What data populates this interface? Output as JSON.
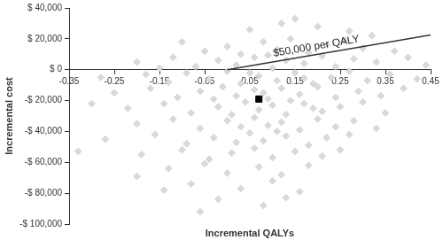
{
  "chart_data": {
    "type": "scatter",
    "x_label": "Incremental QALYs",
    "y_label": "Incremental cost",
    "grid": false,
    "xlim": [
      -0.35,
      0.45
    ],
    "xticks": [
      -0.35,
      -0.25,
      -0.15,
      -0.05,
      0.05,
      0.15,
      0.25,
      0.35,
      0.45
    ],
    "ylim": [
      -100000,
      40000
    ],
    "yticks": [
      {
        "value": 40000,
        "label": "$ 40,000"
      },
      {
        "value": 20000,
        "label": "$ 20,000"
      },
      {
        "value": 0,
        "label": "$ 0"
      },
      {
        "value": -20000,
        "label": "-$ 20,000"
      },
      {
        "value": -40000,
        "label": "-$ 40,000"
      },
      {
        "value": -60000,
        "label": "-$ 60,000"
      },
      {
        "value": -80000,
        "label": "-$ 80,000"
      },
      {
        "value": -100000,
        "label": "-$ 100,000"
      }
    ],
    "series": [
      {
        "color": "#d9d9d9",
        "marker": "diamond",
        "x": [
          0.12,
          0.2,
          0.05,
          0.27,
          0.15,
          0.32,
          -0.05,
          0.0,
          0.08,
          0.14,
          0.22,
          0.3,
          0.37,
          -0.1,
          0.18,
          0.26,
          0.03,
          0.11,
          -0.2,
          -0.12,
          -0.07,
          -0.02,
          0.02,
          0.06,
          0.1,
          0.13,
          0.17,
          0.21,
          0.24,
          0.28,
          0.33,
          0.4,
          0.44,
          0.09,
          -0.15,
          -0.28,
          -0.18,
          -0.13,
          -0.09,
          -0.04,
          0.0,
          0.03,
          0.07,
          0.11,
          0.15,
          0.19,
          0.23,
          0.27,
          0.31,
          0.36,
          0.42,
          0.05,
          0.17,
          -0.25,
          -0.17,
          -0.11,
          -0.06,
          -0.01,
          0.02,
          0.06,
          0.09,
          0.12,
          0.16,
          0.2,
          0.24,
          0.29,
          0.34,
          0.39,
          0.08,
          0.14,
          -0.03,
          -0.22,
          -0.14,
          -0.08,
          -0.02,
          0.01,
          0.04,
          0.07,
          0.1,
          0.13,
          0.17,
          0.21,
          0.25,
          0.3,
          0.35,
          0.19,
          -0.3,
          -0.2,
          -0.12,
          -0.06,
          0.0,
          0.03,
          0.06,
          0.09,
          0.12,
          0.16,
          0.2,
          0.24,
          0.28,
          0.33,
          0.11,
          -0.27,
          -0.16,
          -0.09,
          -0.03,
          0.02,
          0.05,
          0.08,
          0.13,
          0.18,
          0.22,
          0.27,
          -0.19,
          -0.1,
          -0.04,
          0.01,
          0.06,
          0.1,
          0.15,
          0.21,
          0.25,
          -0.33,
          -0.13,
          -0.05,
          0.0,
          0.07,
          0.12,
          0.18,
          -0.2,
          -0.08,
          0.03,
          0.1,
          0.16,
          -0.14,
          -0.02,
          0.08,
          0.13,
          -0.06
        ],
        "y": [
          30000,
          28000,
          26000,
          25000,
          33000,
          22000,
          12000,
          15000,
          18000,
          20000,
          16000,
          14000,
          12000,
          18000,
          11000,
          19000,
          10000,
          13000,
          5000,
          8000,
          2000,
          6000,
          3000,
          8000,
          1000,
          6000,
          4000,
          9000,
          2000,
          7000,
          5000,
          8000,
          3000,
          9500,
          1000,
          -5000,
          -3000,
          -8000,
          -2000,
          -6000,
          -1000,
          -9000,
          -4000,
          -7000,
          -2000,
          -9000,
          -5000,
          -1000,
          -7000,
          -3000,
          -6000,
          -2000,
          -5500,
          -15000,
          -12000,
          -18000,
          -14000,
          -11000,
          -17000,
          -13000,
          -19000,
          -12000,
          -16000,
          -11000,
          -18000,
          -14000,
          -17000,
          -12000,
          -15000,
          -20000,
          -19000,
          -25000,
          -22000,
          -28000,
          -24000,
          -29000,
          -21000,
          -26000,
          -23000,
          -29000,
          -22000,
          -27000,
          -24000,
          -21000,
          -28000,
          -25000,
          -22000,
          -35000,
          -32000,
          -38000,
          -33000,
          -37000,
          -31000,
          -36000,
          -34000,
          -39000,
          -32000,
          -37000,
          -33000,
          -38000,
          -40000,
          -45000,
          -42000,
          -48000,
          -44000,
          -47000,
          -41000,
          -46000,
          -43000,
          -49000,
          -44000,
          -42000,
          -55000,
          -52000,
          -58000,
          -54000,
          -51000,
          -57000,
          -53000,
          -56000,
          -52000,
          -53000,
          -64000,
          -61000,
          -67000,
          -63000,
          -68000,
          -62000,
          -69000,
          -74000,
          -77000,
          -72000,
          -79000,
          -78000,
          -84000,
          -88000,
          -83000,
          -92000
        ]
      },
      {
        "type": "line",
        "color": "#333333",
        "line_style": "solid",
        "x": [
          0,
          0.45
        ],
        "y": [
          0,
          22500
        ]
      },
      {
        "color": "#000000",
        "marker": "square",
        "x": [
          0.07
        ],
        "y": [
          -19000
        ]
      }
    ],
    "annotations": [
      {
        "text": "$50,000 per QALY",
        "x": 0.2,
        "y": 10000
      }
    ]
  }
}
